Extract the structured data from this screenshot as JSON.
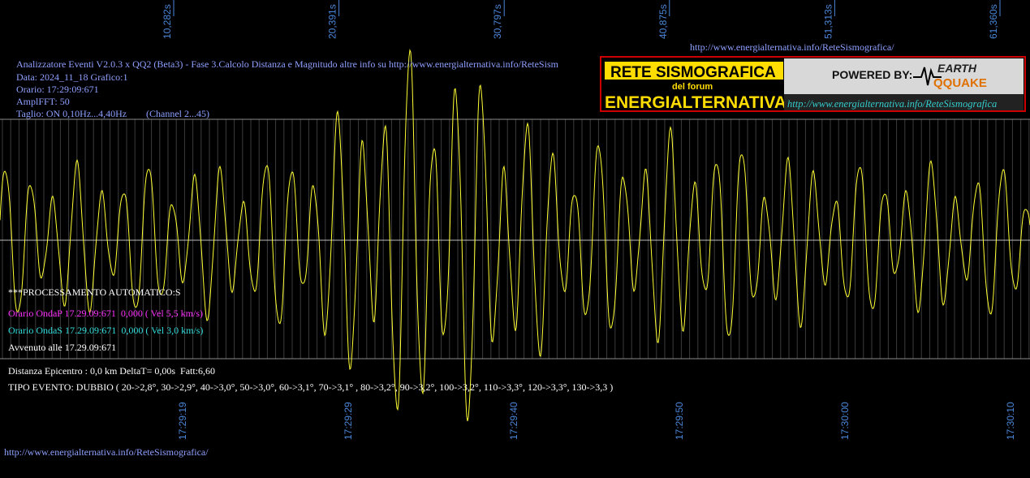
{
  "top_time_labels": [
    "10,282s",
    "20,391s",
    "30,797s",
    "40,875s",
    "51,313s",
    "61,360s"
  ],
  "top_url": "http://www.energialternativa.info/ReteSismografica/",
  "header": {
    "title": "Analizzatore Eventi V2.0.3 x QQ2 (Beta3) - Fase 3.Calcolo Distanza e Magnitudo altre info su http://www.energialternativa.info/ReteSism",
    "date": "Data: 2024_11_18 Grafico:1",
    "time": "Orario: 17:29:09:671",
    "ampl": "AmplFFT: 50",
    "filter": "Taglio: ON 0,10Hz...4,40Hz",
    "channel": "(Channel 2...45)"
  },
  "logo": {
    "title": "RETE SISMOGRAFICA",
    "subtitle": "del forum",
    "name": "ENERGIALTERNATIVA",
    "powered": "POWERED BY:",
    "brand_top": "EARTH",
    "brand_bottom": "QQUAKE",
    "url": "http://www.energialternativa.info/ReteSismografica"
  },
  "processing": {
    "title": "***PROCESSAMENTO AUTOMATICO:S",
    "wave_p": "Orario OndaP 17.29.09:671  0,000 ( Vel 5,5 km/s)",
    "wave_s": "Orario OndaS 17.29.09:671  0,000 ( Vel 3,0 km/s)",
    "occurred": "Avvenuto alle 17.29.09:671",
    "distance": "Distanza Epicentro : 0,0 km DeltaT= 0,00s  Fatt:6,60",
    "event_type": "TIPO EVENTO: DUBBIO ( 20->2,8°, 30->2,9°, 40->3,0°, 50->3,0°, 60->3,1°, 70->3,1° , 80->3,2°, 90->3,2°, 100->3,2°, 110->3,3°, 120->3,3°, 130->3,3 )"
  },
  "bottom_time_labels": [
    "17:29:19",
    "17:29:29",
    "17:29:40",
    "17:29:50",
    "17:30:00",
    "17:30:10"
  ],
  "bottom_url": "http://www.energialternativa.info/ReteSismografica/"
}
